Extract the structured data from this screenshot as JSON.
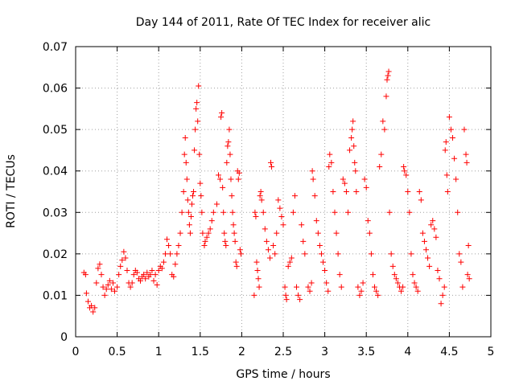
{
  "chart_data": {
    "type": "scatter",
    "title": "Day 144 of 2011, Rate Of TEC Index for receiver alic",
    "xlabel": "GPS time / hours",
    "ylabel": "ROTI / TECUs",
    "xlim": [
      0,
      5
    ],
    "ylim": [
      0,
      0.07
    ],
    "xticks": [
      0,
      0.5,
      1,
      1.5,
      2,
      2.5,
      3,
      3.5,
      4,
      4.5,
      5
    ],
    "xtick_labels": [
      "0",
      "0.5",
      "1",
      "1.5",
      "2",
      "2.5",
      "3",
      "3.5",
      "4",
      "4.5",
      "5"
    ],
    "yticks": [
      0,
      0.01,
      0.02,
      0.03,
      0.04,
      0.05,
      0.06,
      0.07
    ],
    "ytick_labels": [
      "0",
      "0.01",
      "0.02",
      "0.03",
      "0.04",
      "0.05",
      "0.06",
      "0.07"
    ],
    "grid": true,
    "marker": "+",
    "series": [
      {
        "name": "ROTI",
        "color": "#ff0000",
        "points": [
          [
            0.1,
            0.0155
          ],
          [
            0.12,
            0.015
          ],
          [
            0.13,
            0.0105
          ],
          [
            0.15,
            0.0085
          ],
          [
            0.17,
            0.007
          ],
          [
            0.19,
            0.0075
          ],
          [
            0.21,
            0.006
          ],
          [
            0.23,
            0.007
          ],
          [
            0.25,
            0.013
          ],
          [
            0.27,
            0.0165
          ],
          [
            0.29,
            0.0175
          ],
          [
            0.31,
            0.015
          ],
          [
            0.33,
            0.012
          ],
          [
            0.35,
            0.01
          ],
          [
            0.37,
            0.0115
          ],
          [
            0.39,
            0.0125
          ],
          [
            0.41,
            0.0135
          ],
          [
            0.43,
            0.0115
          ],
          [
            0.45,
            0.013
          ],
          [
            0.47,
            0.011
          ],
          [
            0.5,
            0.012
          ],
          [
            0.52,
            0.015
          ],
          [
            0.54,
            0.017
          ],
          [
            0.56,
            0.0185
          ],
          [
            0.58,
            0.0205
          ],
          [
            0.6,
            0.019
          ],
          [
            0.62,
            0.016
          ],
          [
            0.64,
            0.013
          ],
          [
            0.66,
            0.012
          ],
          [
            0.68,
            0.013
          ],
          [
            0.7,
            0.015
          ],
          [
            0.72,
            0.016
          ],
          [
            0.74,
            0.0155
          ],
          [
            0.76,
            0.014
          ],
          [
            0.78,
            0.0135
          ],
          [
            0.8,
            0.0145
          ],
          [
            0.82,
            0.015
          ],
          [
            0.84,
            0.014
          ],
          [
            0.86,
            0.0155
          ],
          [
            0.88,
            0.0145
          ],
          [
            0.9,
            0.015
          ],
          [
            0.92,
            0.016
          ],
          [
            0.94,
            0.0135
          ],
          [
            0.96,
            0.015
          ],
          [
            0.98,
            0.0125
          ],
          [
            1.0,
            0.016
          ],
          [
            1.02,
            0.017
          ],
          [
            1.04,
            0.0165
          ],
          [
            1.06,
            0.018
          ],
          [
            1.08,
            0.02
          ],
          [
            1.1,
            0.0235
          ],
          [
            1.12,
            0.022
          ],
          [
            1.14,
            0.02
          ],
          [
            1.16,
            0.015
          ],
          [
            1.18,
            0.0145
          ],
          [
            1.2,
            0.0175
          ],
          [
            1.22,
            0.02
          ],
          [
            1.24,
            0.022
          ],
          [
            1.26,
            0.025
          ],
          [
            1.28,
            0.03
          ],
          [
            1.3,
            0.035
          ],
          [
            1.31,
            0.044
          ],
          [
            1.32,
            0.048
          ],
          [
            1.33,
            0.042
          ],
          [
            1.34,
            0.038
          ],
          [
            1.35,
            0.033
          ],
          [
            1.36,
            0.03
          ],
          [
            1.37,
            0.027
          ],
          [
            1.38,
            0.025
          ],
          [
            1.39,
            0.029
          ],
          [
            1.4,
            0.032
          ],
          [
            1.41,
            0.034
          ],
          [
            1.42,
            0.035
          ],
          [
            1.43,
            0.045
          ],
          [
            1.44,
            0.05
          ],
          [
            1.45,
            0.055
          ],
          [
            1.46,
            0.0565
          ],
          [
            1.47,
            0.052
          ],
          [
            1.48,
            0.0605
          ],
          [
            1.49,
            0.044
          ],
          [
            1.5,
            0.037
          ],
          [
            1.51,
            0.034
          ],
          [
            1.52,
            0.03
          ],
          [
            1.53,
            0.025
          ],
          [
            1.55,
            0.022
          ],
          [
            1.56,
            0.023
          ],
          [
            1.58,
            0.024
          ],
          [
            1.6,
            0.025
          ],
          [
            1.62,
            0.026
          ],
          [
            1.64,
            0.028
          ],
          [
            1.66,
            0.03
          ],
          [
            1.7,
            0.032
          ],
          [
            1.72,
            0.039
          ],
          [
            1.74,
            0.038
          ],
          [
            1.75,
            0.053
          ],
          [
            1.76,
            0.054
          ],
          [
            1.77,
            0.036
          ],
          [
            1.78,
            0.03
          ],
          [
            1.79,
            0.025
          ],
          [
            1.8,
            0.023
          ],
          [
            1.81,
            0.022
          ],
          [
            1.82,
            0.042
          ],
          [
            1.83,
            0.046
          ],
          [
            1.84,
            0.047
          ],
          [
            1.85,
            0.05
          ],
          [
            1.86,
            0.044
          ],
          [
            1.87,
            0.038
          ],
          [
            1.88,
            0.034
          ],
          [
            1.89,
            0.03
          ],
          [
            1.9,
            0.027
          ],
          [
            1.91,
            0.025
          ],
          [
            1.92,
            0.023
          ],
          [
            1.93,
            0.018
          ],
          [
            1.94,
            0.017
          ],
          [
            1.95,
            0.04
          ],
          [
            1.96,
            0.038
          ],
          [
            1.97,
            0.0395
          ],
          [
            1.98,
            0.021
          ],
          [
            1.99,
            0.02
          ],
          [
            2.15,
            0.01
          ],
          [
            2.16,
            0.03
          ],
          [
            2.17,
            0.029
          ],
          [
            2.18,
            0.018
          ],
          [
            2.19,
            0.016
          ],
          [
            2.2,
            0.014
          ],
          [
            2.21,
            0.012
          ],
          [
            2.22,
            0.034
          ],
          [
            2.23,
            0.035
          ],
          [
            2.24,
            0.033
          ],
          [
            2.26,
            0.03
          ],
          [
            2.28,
            0.026
          ],
          [
            2.3,
            0.023
          ],
          [
            2.32,
            0.021
          ],
          [
            2.34,
            0.019
          ],
          [
            2.35,
            0.042
          ],
          [
            2.36,
            0.041
          ],
          [
            2.38,
            0.022
          ],
          [
            2.4,
            0.02
          ],
          [
            2.42,
            0.025
          ],
          [
            2.44,
            0.033
          ],
          [
            2.46,
            0.031
          ],
          [
            2.48,
            0.029
          ],
          [
            2.5,
            0.027
          ],
          [
            2.52,
            0.012
          ],
          [
            2.53,
            0.01
          ],
          [
            2.54,
            0.009
          ],
          [
            2.56,
            0.017
          ],
          [
            2.58,
            0.018
          ],
          [
            2.6,
            0.019
          ],
          [
            2.62,
            0.03
          ],
          [
            2.64,
            0.034
          ],
          [
            2.66,
            0.012
          ],
          [
            2.68,
            0.01
          ],
          [
            2.7,
            0.009
          ],
          [
            2.72,
            0.027
          ],
          [
            2.74,
            0.023
          ],
          [
            2.76,
            0.02
          ],
          [
            2.8,
            0.012
          ],
          [
            2.82,
            0.011
          ],
          [
            2.84,
            0.013
          ],
          [
            2.85,
            0.04
          ],
          [
            2.86,
            0.038
          ],
          [
            2.88,
            0.034
          ],
          [
            2.9,
            0.028
          ],
          [
            2.92,
            0.025
          ],
          [
            2.94,
            0.022
          ],
          [
            2.96,
            0.02
          ],
          [
            2.98,
            0.018
          ],
          [
            3.0,
            0.016
          ],
          [
            3.02,
            0.013
          ],
          [
            3.04,
            0.011
          ],
          [
            3.05,
            0.041
          ],
          [
            3.06,
            0.044
          ],
          [
            3.08,
            0.042
          ],
          [
            3.1,
            0.035
          ],
          [
            3.12,
            0.03
          ],
          [
            3.14,
            0.025
          ],
          [
            3.16,
            0.02
          ],
          [
            3.18,
            0.015
          ],
          [
            3.2,
            0.012
          ],
          [
            3.22,
            0.038
          ],
          [
            3.24,
            0.037
          ],
          [
            3.26,
            0.035
          ],
          [
            3.28,
            0.03
          ],
          [
            3.3,
            0.045
          ],
          [
            3.32,
            0.048
          ],
          [
            3.33,
            0.05
          ],
          [
            3.34,
            0.052
          ],
          [
            3.35,
            0.046
          ],
          [
            3.36,
            0.042
          ],
          [
            3.37,
            0.04
          ],
          [
            3.38,
            0.035
          ],
          [
            3.4,
            0.012
          ],
          [
            3.42,
            0.01
          ],
          [
            3.44,
            0.011
          ],
          [
            3.46,
            0.013
          ],
          [
            3.48,
            0.038
          ],
          [
            3.5,
            0.036
          ],
          [
            3.52,
            0.028
          ],
          [
            3.54,
            0.025
          ],
          [
            3.56,
            0.02
          ],
          [
            3.58,
            0.015
          ],
          [
            3.6,
            0.012
          ],
          [
            3.62,
            0.011
          ],
          [
            3.64,
            0.01
          ],
          [
            3.66,
            0.041
          ],
          [
            3.68,
            0.044
          ],
          [
            3.7,
            0.052
          ],
          [
            3.72,
            0.05
          ],
          [
            3.74,
            0.058
          ],
          [
            3.75,
            0.062
          ],
          [
            3.76,
            0.063
          ],
          [
            3.77,
            0.064
          ],
          [
            3.78,
            0.03
          ],
          [
            3.8,
            0.02
          ],
          [
            3.82,
            0.017
          ],
          [
            3.84,
            0.015
          ],
          [
            3.86,
            0.014
          ],
          [
            3.88,
            0.013
          ],
          [
            3.9,
            0.012
          ],
          [
            3.92,
            0.011
          ],
          [
            3.94,
            0.012
          ],
          [
            3.95,
            0.041
          ],
          [
            3.96,
            0.04
          ],
          [
            3.98,
            0.039
          ],
          [
            4.0,
            0.035
          ],
          [
            4.02,
            0.03
          ],
          [
            4.04,
            0.02
          ],
          [
            4.06,
            0.015
          ],
          [
            4.08,
            0.013
          ],
          [
            4.1,
            0.012
          ],
          [
            4.12,
            0.011
          ],
          [
            4.14,
            0.035
          ],
          [
            4.16,
            0.033
          ],
          [
            4.18,
            0.025
          ],
          [
            4.2,
            0.023
          ],
          [
            4.22,
            0.021
          ],
          [
            4.24,
            0.019
          ],
          [
            4.26,
            0.017
          ],
          [
            4.28,
            0.027
          ],
          [
            4.3,
            0.028
          ],
          [
            4.32,
            0.026
          ],
          [
            4.34,
            0.024
          ],
          [
            4.36,
            0.016
          ],
          [
            4.38,
            0.014
          ],
          [
            4.4,
            0.008
          ],
          [
            4.42,
            0.01
          ],
          [
            4.44,
            0.012
          ],
          [
            4.45,
            0.045
          ],
          [
            4.46,
            0.047
          ],
          [
            4.47,
            0.039
          ],
          [
            4.48,
            0.035
          ],
          [
            4.5,
            0.053
          ],
          [
            4.52,
            0.05
          ],
          [
            4.54,
            0.048
          ],
          [
            4.56,
            0.043
          ],
          [
            4.58,
            0.038
          ],
          [
            4.6,
            0.03
          ],
          [
            4.62,
            0.02
          ],
          [
            4.64,
            0.018
          ],
          [
            4.66,
            0.012
          ],
          [
            4.68,
            0.05
          ],
          [
            4.7,
            0.044
          ],
          [
            4.71,
            0.042
          ],
          [
            4.72,
            0.015
          ],
          [
            4.73,
            0.022
          ],
          [
            4.74,
            0.014
          ]
        ]
      }
    ]
  }
}
